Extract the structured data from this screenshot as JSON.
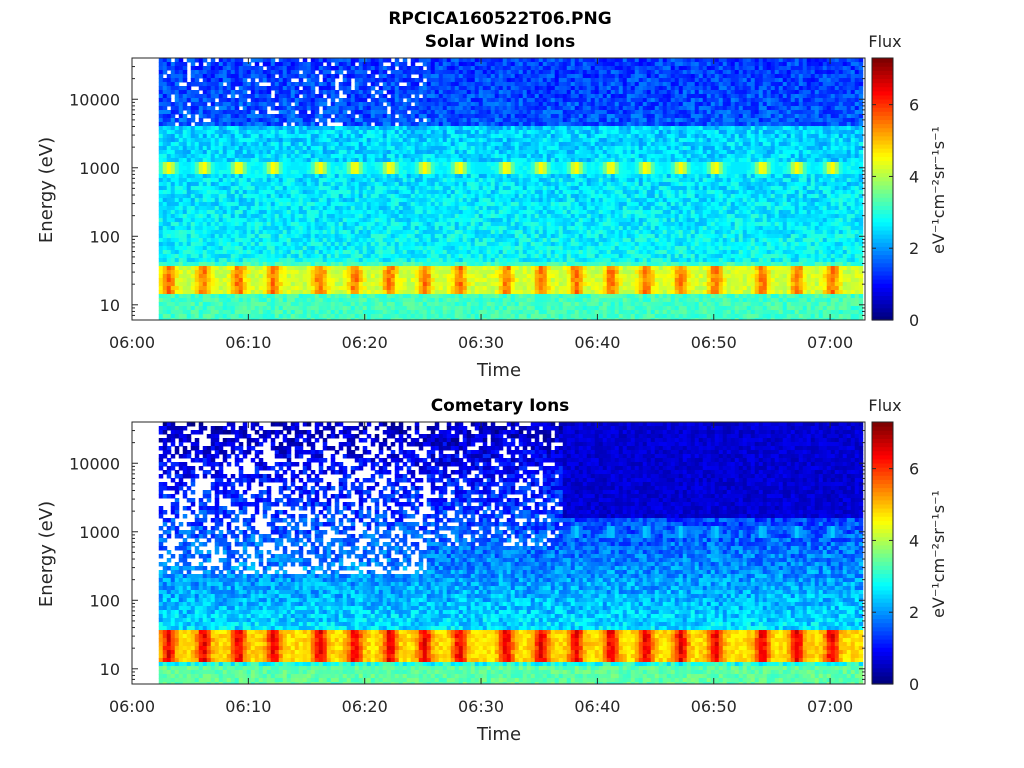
{
  "figure": {
    "title": "RPCICA160522T06.PNG"
  },
  "chart_data": [
    {
      "type": "heatmap",
      "title": "Solar Wind Ions",
      "xlabel": "Time",
      "ylabel": "Energy (eV)",
      "x_ticks": [
        "06:00",
        "06:10",
        "06:20",
        "06:30",
        "06:40",
        "06:50",
        "07:00"
      ],
      "y_ticks": [
        "10",
        "100",
        "1000",
        "10000"
      ],
      "y_scale": "log",
      "xlim_minutes": [
        0,
        63
      ],
      "ylim": [
        6,
        40000
      ],
      "data_start_minute": 2.3,
      "colorbar": {
        "title": "Flux",
        "label": "eV⁻¹cm⁻²sr⁻¹s⁻¹",
        "ticks": [
          "0",
          "2",
          "4",
          "6"
        ],
        "range": [
          0,
          7.3
        ],
        "colormap": "jet"
      },
      "features": {
        "low_energy_band_eV": [
          15,
          35
        ],
        "low_energy_peak_flux": 5.6,
        "mid_energy_band_eV": 1000,
        "mid_energy_peak_flux": 4.5,
        "pulse_minutes": [
          3,
          6,
          9,
          12,
          16,
          19,
          22,
          25,
          28,
          32,
          35,
          38,
          41,
          44,
          47,
          50,
          54,
          57,
          60
        ],
        "background_flux": 2.6
      }
    },
    {
      "type": "heatmap",
      "title": "Cometary Ions",
      "xlabel": "Time",
      "ylabel": "Energy (eV)",
      "x_ticks": [
        "06:00",
        "06:10",
        "06:20",
        "06:30",
        "06:40",
        "06:50",
        "07:00"
      ],
      "y_ticks": [
        "10",
        "100",
        "1000",
        "10000"
      ],
      "y_scale": "log",
      "xlim_minutes": [
        0,
        63
      ],
      "ylim": [
        6,
        40000
      ],
      "data_start_minute": 2.3,
      "colorbar": {
        "title": "Flux",
        "label": "eV⁻¹cm⁻²sr⁻¹s⁻¹",
        "ticks": [
          "0",
          "2",
          "4",
          "6"
        ],
        "range": [
          0,
          7.3
        ],
        "colormap": "jet"
      },
      "features": {
        "low_energy_band_eV": [
          12,
          35
        ],
        "low_energy_peak_flux": 6.4,
        "mid_energy_band_eV": 1000,
        "mid_energy_peak_flux": 2.3,
        "pulse_minutes": [
          3,
          6,
          9,
          12,
          16,
          19,
          22,
          25,
          28,
          32,
          35,
          38,
          41,
          44,
          47,
          50,
          54,
          57,
          60
        ],
        "background_flux": 0.9
      }
    }
  ]
}
